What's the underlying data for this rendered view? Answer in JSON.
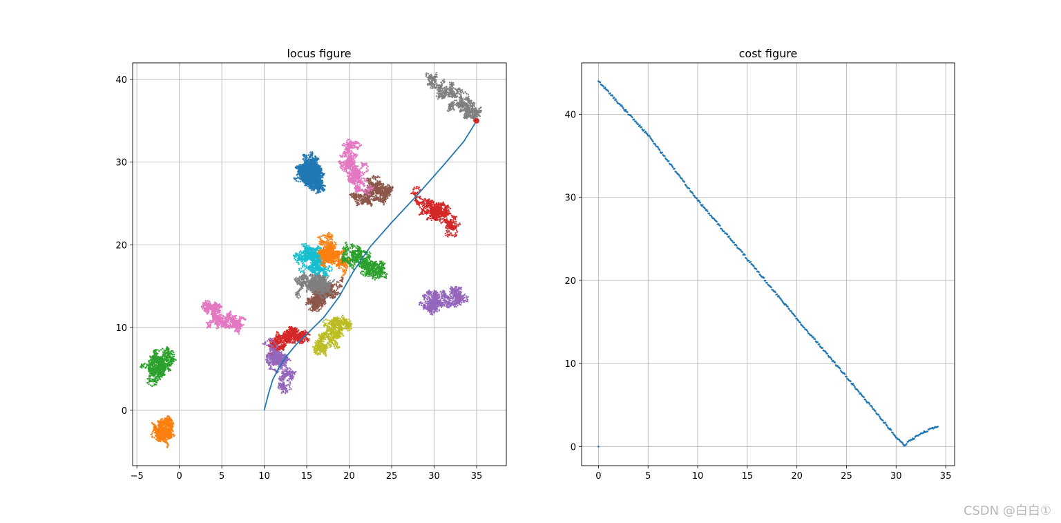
{
  "watermark": "CSDN @白白①",
  "chart_data": [
    {
      "type": "line",
      "title": "locus figure",
      "xlim": [
        -5.5,
        38.5
      ],
      "ylim": [
        -6.7,
        42.0
      ],
      "xticks": [
        -5,
        0,
        5,
        10,
        15,
        20,
        25,
        30,
        35
      ],
      "yticks": [
        0,
        10,
        20,
        30,
        40
      ],
      "grid": true,
      "path": {
        "color": "#1f77b4",
        "x": [
          10,
          10.5,
          11,
          11.7,
          12.6,
          13.8,
          15.3,
          17.0,
          18.8,
          20.5,
          22.5,
          25.0,
          28.0,
          31.0,
          33.5,
          35.0
        ],
        "y": [
          0,
          2.0,
          3.7,
          5.1,
          6.5,
          8.0,
          9.5,
          11.2,
          13.7,
          16.8,
          19.8,
          22.7,
          26.0,
          29.5,
          32.5,
          35.0
        ]
      },
      "end_marker": {
        "x": 35.0,
        "y": 35.0,
        "color": "#d62728"
      },
      "walks": [
        {
          "color": "#1f77b4",
          "start": [
            15.5,
            30.0
          ],
          "end": [
            15.5,
            27.0
          ]
        },
        {
          "color": "#ff7f0e",
          "start": [
            -1.6,
            -1.5
          ],
          "end": [
            -2.1,
            -3.8
          ]
        },
        {
          "color": "#2ca02c",
          "start": [
            -1.5,
            6.5
          ],
          "end": [
            -3.2,
            4.3
          ]
        },
        {
          "color": "#d62728",
          "start": [
            14.7,
            9.2
          ],
          "end": [
            10.8,
            7.6
          ]
        },
        {
          "color": "#9467bd",
          "start": [
            11.0,
            7.6
          ],
          "end": [
            12.5,
            3.2
          ]
        },
        {
          "color": "#8c564b",
          "start": [
            15.0,
            13.0
          ],
          "end": [
            18.0,
            14.8
          ]
        },
        {
          "color": "#e377c2",
          "start": [
            2.8,
            12.2
          ],
          "end": [
            7.2,
            10.0
          ]
        },
        {
          "color": "#7f7f7f",
          "start": [
            15.0,
            16.0
          ],
          "end": [
            17.5,
            14.5
          ]
        },
        {
          "color": "#bcbd22",
          "start": [
            19.2,
            11.3
          ],
          "end": [
            15.5,
            7.0
          ]
        },
        {
          "color": "#17becf",
          "start": [
            14.8,
            19.0
          ],
          "end": [
            16.0,
            17.0
          ]
        },
        {
          "color": "#1f77b4",
          "start": [
            15.0,
            29.5
          ],
          "end": [
            16.0,
            27.5
          ]
        },
        {
          "color": "#ff7f0e",
          "start": [
            17.5,
            19.5
          ],
          "end": [
            18.5,
            18.0
          ]
        },
        {
          "color": "#2ca02c",
          "start": [
            20.0,
            18.8
          ],
          "end": [
            23.8,
            16.8
          ]
        },
        {
          "color": "#d62728",
          "start": [
            28.8,
            25.0
          ],
          "end": [
            31.8,
            23.0
          ]
        },
        {
          "color": "#9467bd",
          "start": [
            28.8,
            12.8
          ],
          "end": [
            32.8,
            13.8
          ]
        },
        {
          "color": "#8c564b",
          "start": [
            21.5,
            26.0
          ],
          "end": [
            24.2,
            26.8
          ]
        },
        {
          "color": "#e377c2",
          "start": [
            19.5,
            31.5
          ],
          "end": [
            21.0,
            27.2
          ]
        },
        {
          "color": "#7f7f7f",
          "start": [
            30.0,
            39.5
          ],
          "end": [
            35.5,
            35.2
          ]
        }
      ]
    },
    {
      "type": "scatter",
      "title": "cost figure",
      "xlim": [
        -1.7,
        35.9
      ],
      "ylim": [
        -2.3,
        46.2
      ],
      "xticks": [
        0,
        5,
        10,
        15,
        20,
        25,
        30,
        35
      ],
      "yticks": [
        0,
        10,
        20,
        30,
        40
      ],
      "grid": true,
      "color": "#1f77b4",
      "series": [
        {
          "x": [
            0,
            5,
            10,
            15,
            20,
            25,
            30,
            30.8
          ],
          "y": [
            44,
            37.5,
            29.7,
            22.6,
            15.4,
            8.4,
            1.2,
            0.1
          ]
        },
        {
          "x": [
            30.8,
            31.5,
            32.5,
            33.5,
            34.2
          ],
          "y": [
            0.1,
            0.8,
            1.6,
            2.1,
            2.4
          ]
        }
      ],
      "outlier": {
        "x": 0,
        "y": 0
      }
    }
  ]
}
